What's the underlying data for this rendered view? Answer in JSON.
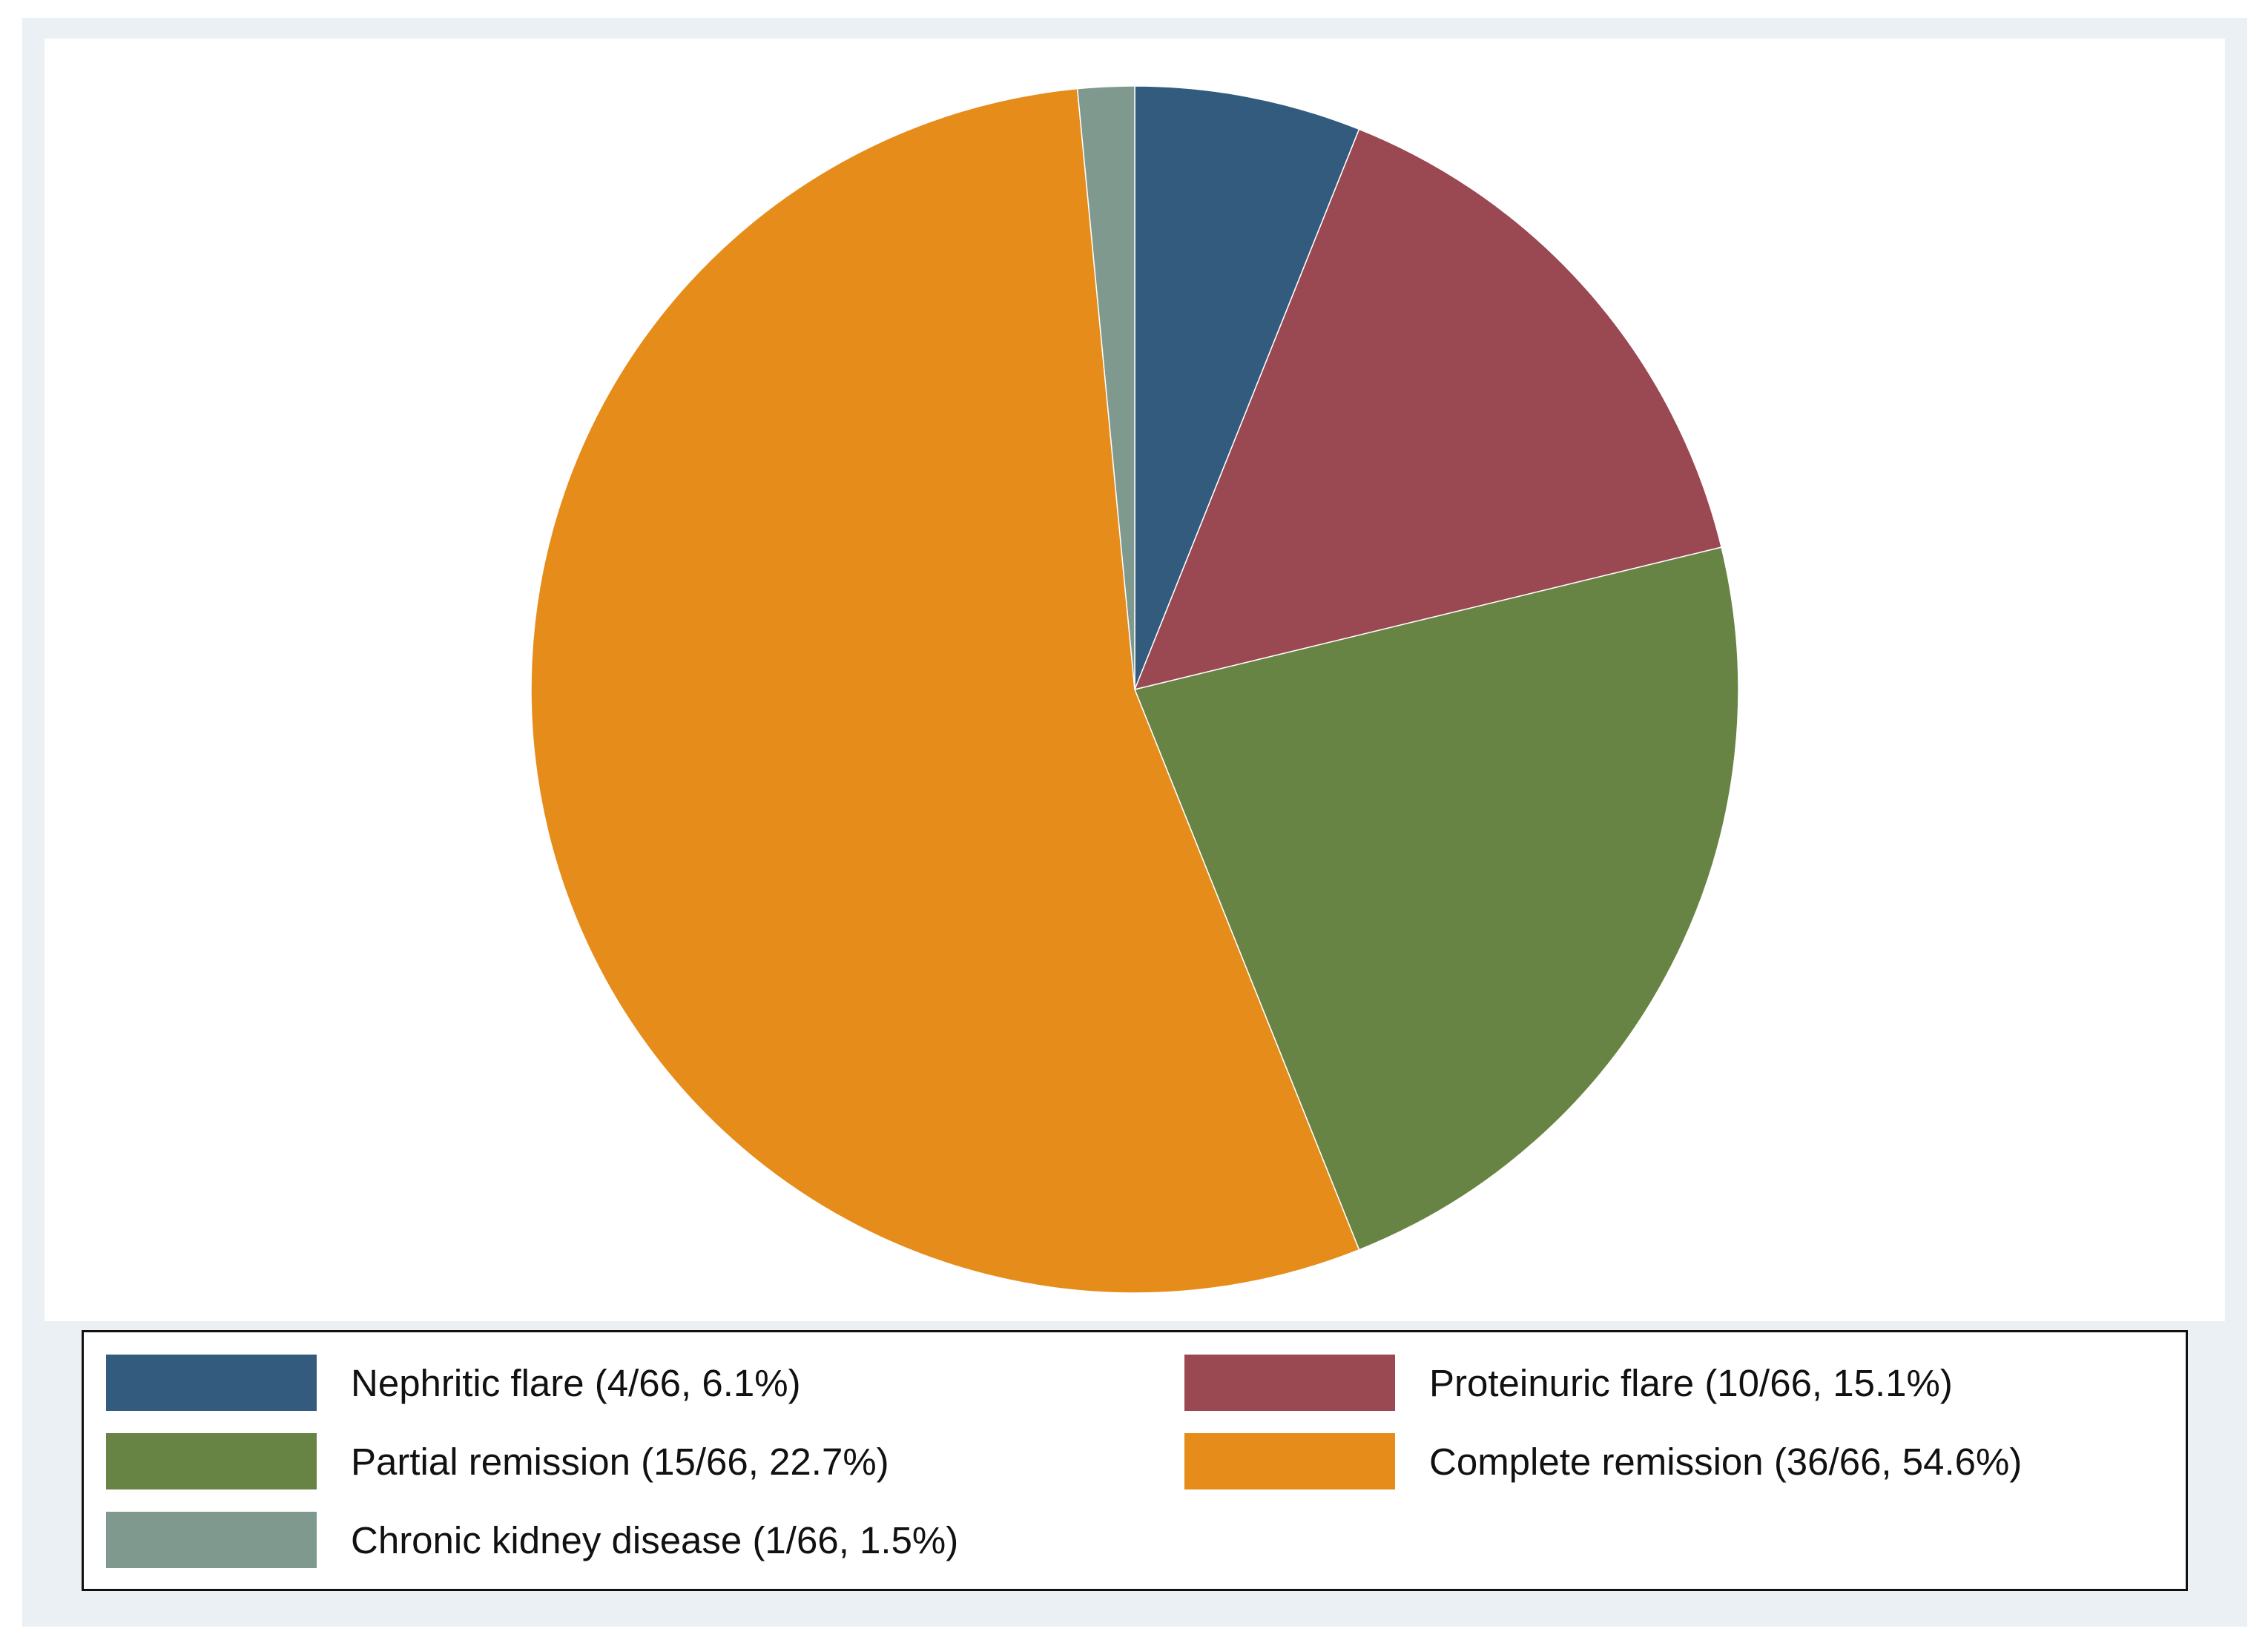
{
  "chart_data": {
    "type": "pie",
    "title": "",
    "start_angle_deg": 90,
    "direction": "clockwise",
    "slices": [
      {
        "label": "Nephritic flare (4/66, 6.1%)",
        "value": 4,
        "color": "#335b7e"
      },
      {
        "label": "Proteinuric flare (10/66, 15.1%)",
        "value": 10,
        "color": "#9a4851"
      },
      {
        "label": "Partial remission (15/66, 22.7%)",
        "value": 15,
        "color": "#678444"
      },
      {
        "label": "Complete remission (36/66, 54.6%)",
        "value": 36,
        "color": "#e68c1b"
      },
      {
        "label": "Chronic kidney disease (1/66, 1.5%)",
        "value": 1,
        "color": "#7f998f"
      }
    ],
    "legend_position": "bottom"
  }
}
